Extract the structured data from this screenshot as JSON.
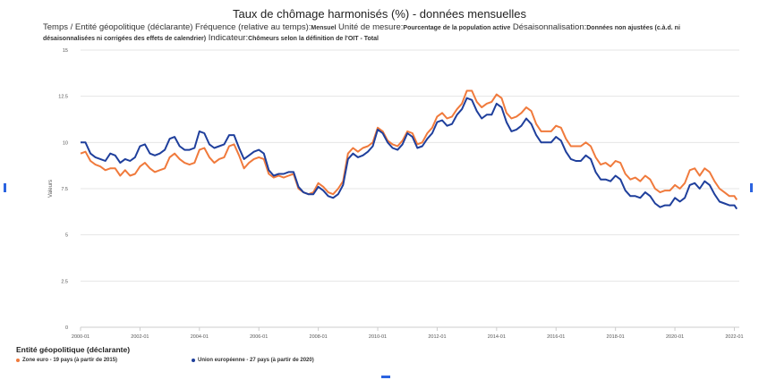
{
  "title": "Taux de chômage harmonisés (%) - données mensuelles",
  "subtitle": {
    "l1_k1": "Temps / Entité géopolitique (déclarante)  Fréquence (relative au temps):",
    "l1_v1": "Mensuel",
    "l1_k2": "  Unité de mesure:",
    "l1_v2": "Pourcentage de la population active",
    "l1_k3": "  Désaisonnalisation:",
    "l1_v3": "Données non ajustées (c.à.d. ni désaisonnalisées ni corrigées des effets de calendrier)",
    "l2_k1": "  Indicateur:",
    "l2_v1": "Chômeurs selon la définition de l'OIT - Total"
  },
  "legend_title": "Entité géopolitique (déclarante)",
  "colors": {
    "euro": "#f07a3c",
    "eu": "#1f3f9c",
    "grid": "#e6e6e6",
    "axis": "#cccccc",
    "edge": "#2b63e0"
  },
  "chart_data": {
    "type": "line",
    "ylabel": "Valeurs",
    "ylim": [
      0,
      15
    ],
    "yticks": [
      0,
      2.5,
      5,
      7.5,
      10,
      12.5,
      15
    ],
    "ytick_labels": [
      "0",
      "2.5",
      "5",
      "7.5",
      "10",
      "12.5",
      "15"
    ],
    "xlim": [
      "2000-01",
      "2022-03"
    ],
    "xticks": [
      "2000-01",
      "2002-01",
      "2004-01",
      "2006-01",
      "2008-01",
      "2010-01",
      "2012-01",
      "2014-01",
      "2016-01",
      "2018-01",
      "2020-01",
      "2022-01"
    ],
    "series": [
      {
        "name": "Zone euro - 19 pays (à partir de 2015)",
        "color": "#f07a3c",
        "points": [
          [
            "2000-01",
            9.4
          ],
          [
            "2000-03",
            9.5
          ],
          [
            "2000-05",
            9.0
          ],
          [
            "2000-07",
            8.8
          ],
          [
            "2000-09",
            8.7
          ],
          [
            "2000-11",
            8.5
          ],
          [
            "2001-01",
            8.6
          ],
          [
            "2001-03",
            8.6
          ],
          [
            "2001-05",
            8.2
          ],
          [
            "2001-07",
            8.5
          ],
          [
            "2001-09",
            8.2
          ],
          [
            "2001-11",
            8.3
          ],
          [
            "2002-01",
            8.7
          ],
          [
            "2002-03",
            8.9
          ],
          [
            "2002-05",
            8.6
          ],
          [
            "2002-07",
            8.4
          ],
          [
            "2002-09",
            8.5
          ],
          [
            "2002-11",
            8.6
          ],
          [
            "2003-01",
            9.2
          ],
          [
            "2003-03",
            9.4
          ],
          [
            "2003-05",
            9.1
          ],
          [
            "2003-07",
            8.9
          ],
          [
            "2003-09",
            8.8
          ],
          [
            "2003-11",
            8.9
          ],
          [
            "2004-01",
            9.6
          ],
          [
            "2004-03",
            9.7
          ],
          [
            "2004-05",
            9.2
          ],
          [
            "2004-07",
            8.9
          ],
          [
            "2004-09",
            9.1
          ],
          [
            "2004-11",
            9.2
          ],
          [
            "2005-01",
            9.8
          ],
          [
            "2005-03",
            9.9
          ],
          [
            "2005-05",
            9.3
          ],
          [
            "2005-07",
            8.6
          ],
          [
            "2005-09",
            8.9
          ],
          [
            "2005-11",
            9.1
          ],
          [
            "2006-01",
            9.2
          ],
          [
            "2006-03",
            9.1
          ],
          [
            "2006-05",
            8.3
          ],
          [
            "2006-07",
            8.1
          ],
          [
            "2006-09",
            8.2
          ],
          [
            "2006-11",
            8.1
          ],
          [
            "2007-01",
            8.2
          ],
          [
            "2007-03",
            8.3
          ],
          [
            "2007-05",
            7.5
          ],
          [
            "2007-07",
            7.3
          ],
          [
            "2007-09",
            7.2
          ],
          [
            "2007-11",
            7.3
          ],
          [
            "2008-01",
            7.8
          ],
          [
            "2008-03",
            7.6
          ],
          [
            "2008-05",
            7.3
          ],
          [
            "2008-07",
            7.2
          ],
          [
            "2008-09",
            7.5
          ],
          [
            "2008-11",
            7.9
          ],
          [
            "2009-01",
            9.4
          ],
          [
            "2009-03",
            9.7
          ],
          [
            "2009-05",
            9.5
          ],
          [
            "2009-07",
            9.7
          ],
          [
            "2009-09",
            9.8
          ],
          [
            "2009-11",
            10.0
          ],
          [
            "2010-01",
            10.8
          ],
          [
            "2010-03",
            10.6
          ],
          [
            "2010-05",
            10.1
          ],
          [
            "2010-07",
            9.9
          ],
          [
            "2010-09",
            9.8
          ],
          [
            "2010-11",
            10.1
          ],
          [
            "2011-01",
            10.6
          ],
          [
            "2011-03",
            10.5
          ],
          [
            "2011-05",
            9.9
          ],
          [
            "2011-07",
            10.0
          ],
          [
            "2011-09",
            10.5
          ],
          [
            "2011-11",
            10.8
          ],
          [
            "2012-01",
            11.4
          ],
          [
            "2012-03",
            11.6
          ],
          [
            "2012-05",
            11.3
          ],
          [
            "2012-07",
            11.4
          ],
          [
            "2012-09",
            11.8
          ],
          [
            "2012-11",
            12.1
          ],
          [
            "2013-01",
            12.8
          ],
          [
            "2013-03",
            12.8
          ],
          [
            "2013-05",
            12.2
          ],
          [
            "2013-07",
            11.9
          ],
          [
            "2013-09",
            12.1
          ],
          [
            "2013-11",
            12.2
          ],
          [
            "2014-01",
            12.6
          ],
          [
            "2014-03",
            12.4
          ],
          [
            "2014-05",
            11.6
          ],
          [
            "2014-07",
            11.3
          ],
          [
            "2014-09",
            11.4
          ],
          [
            "2014-11",
            11.6
          ],
          [
            "2015-01",
            11.9
          ],
          [
            "2015-03",
            11.7
          ],
          [
            "2015-05",
            11.0
          ],
          [
            "2015-07",
            10.6
          ],
          [
            "2015-09",
            10.6
          ],
          [
            "2015-11",
            10.6
          ],
          [
            "2016-01",
            10.9
          ],
          [
            "2016-03",
            10.8
          ],
          [
            "2016-05",
            10.2
          ],
          [
            "2016-07",
            9.8
          ],
          [
            "2016-09",
            9.8
          ],
          [
            "2016-11",
            9.8
          ],
          [
            "2017-01",
            10.0
          ],
          [
            "2017-03",
            9.8
          ],
          [
            "2017-05",
            9.2
          ],
          [
            "2017-07",
            8.8
          ],
          [
            "2017-09",
            8.9
          ],
          [
            "2017-11",
            8.7
          ],
          [
            "2018-01",
            9.0
          ],
          [
            "2018-03",
            8.9
          ],
          [
            "2018-05",
            8.3
          ],
          [
            "2018-07",
            8.0
          ],
          [
            "2018-09",
            8.1
          ],
          [
            "2018-11",
            7.9
          ],
          [
            "2019-01",
            8.2
          ],
          [
            "2019-03",
            8.0
          ],
          [
            "2019-05",
            7.5
          ],
          [
            "2019-07",
            7.3
          ],
          [
            "2019-09",
            7.4
          ],
          [
            "2019-11",
            7.4
          ],
          [
            "2020-01",
            7.7
          ],
          [
            "2020-03",
            7.5
          ],
          [
            "2020-05",
            7.8
          ],
          [
            "2020-07",
            8.5
          ],
          [
            "2020-09",
            8.6
          ],
          [
            "2020-11",
            8.2
          ],
          [
            "2021-01",
            8.6
          ],
          [
            "2021-03",
            8.4
          ],
          [
            "2021-05",
            7.9
          ],
          [
            "2021-07",
            7.5
          ],
          [
            "2021-09",
            7.3
          ],
          [
            "2021-11",
            7.1
          ],
          [
            "2022-01",
            7.1
          ],
          [
            "2022-02",
            6.9
          ]
        ]
      },
      {
        "name": "Union européenne - 27 pays (à partir de 2020)",
        "color": "#1f3f9c",
        "points": [
          [
            "2000-01",
            10.0
          ],
          [
            "2000-03",
            10.0
          ],
          [
            "2000-05",
            9.4
          ],
          [
            "2000-07",
            9.2
          ],
          [
            "2000-09",
            9.1
          ],
          [
            "2000-11",
            9.0
          ],
          [
            "2001-01",
            9.4
          ],
          [
            "2001-03",
            9.3
          ],
          [
            "2001-05",
            8.9
          ],
          [
            "2001-07",
            9.1
          ],
          [
            "2001-09",
            9.0
          ],
          [
            "2001-11",
            9.2
          ],
          [
            "2002-01",
            9.8
          ],
          [
            "2002-03",
            9.9
          ],
          [
            "2002-05",
            9.4
          ],
          [
            "2002-07",
            9.3
          ],
          [
            "2002-09",
            9.4
          ],
          [
            "2002-11",
            9.6
          ],
          [
            "2003-01",
            10.2
          ],
          [
            "2003-03",
            10.3
          ],
          [
            "2003-05",
            9.8
          ],
          [
            "2003-07",
            9.6
          ],
          [
            "2003-09",
            9.6
          ],
          [
            "2003-11",
            9.7
          ],
          [
            "2004-01",
            10.6
          ],
          [
            "2004-03",
            10.5
          ],
          [
            "2004-05",
            9.9
          ],
          [
            "2004-07",
            9.7
          ],
          [
            "2004-09",
            9.8
          ],
          [
            "2004-11",
            9.9
          ],
          [
            "2005-01",
            10.4
          ],
          [
            "2005-03",
            10.4
          ],
          [
            "2005-05",
            9.7
          ],
          [
            "2005-07",
            9.1
          ],
          [
            "2005-09",
            9.3
          ],
          [
            "2005-11",
            9.5
          ],
          [
            "2006-01",
            9.6
          ],
          [
            "2006-03",
            9.4
          ],
          [
            "2006-05",
            8.5
          ],
          [
            "2006-07",
            8.2
          ],
          [
            "2006-09",
            8.3
          ],
          [
            "2006-11",
            8.3
          ],
          [
            "2007-01",
            8.4
          ],
          [
            "2007-03",
            8.4
          ],
          [
            "2007-05",
            7.6
          ],
          [
            "2007-07",
            7.3
          ],
          [
            "2007-09",
            7.2
          ],
          [
            "2007-11",
            7.2
          ],
          [
            "2008-01",
            7.6
          ],
          [
            "2008-03",
            7.4
          ],
          [
            "2008-05",
            7.1
          ],
          [
            "2008-07",
            7.0
          ],
          [
            "2008-09",
            7.2
          ],
          [
            "2008-11",
            7.7
          ],
          [
            "2009-01",
            9.1
          ],
          [
            "2009-03",
            9.4
          ],
          [
            "2009-05",
            9.2
          ],
          [
            "2009-07",
            9.3
          ],
          [
            "2009-09",
            9.5
          ],
          [
            "2009-11",
            9.8
          ],
          [
            "2010-01",
            10.7
          ],
          [
            "2010-03",
            10.5
          ],
          [
            "2010-05",
            10.0
          ],
          [
            "2010-07",
            9.7
          ],
          [
            "2010-09",
            9.6
          ],
          [
            "2010-11",
            9.9
          ],
          [
            "2011-01",
            10.5
          ],
          [
            "2011-03",
            10.3
          ],
          [
            "2011-05",
            9.7
          ],
          [
            "2011-07",
            9.8
          ],
          [
            "2011-09",
            10.2
          ],
          [
            "2011-11",
            10.5
          ],
          [
            "2012-01",
            11.1
          ],
          [
            "2012-03",
            11.2
          ],
          [
            "2012-05",
            10.9
          ],
          [
            "2012-07",
            11.0
          ],
          [
            "2012-09",
            11.5
          ],
          [
            "2012-11",
            11.8
          ],
          [
            "2013-01",
            12.4
          ],
          [
            "2013-03",
            12.3
          ],
          [
            "2013-05",
            11.7
          ],
          [
            "2013-07",
            11.3
          ],
          [
            "2013-09",
            11.5
          ],
          [
            "2013-11",
            11.5
          ],
          [
            "2014-01",
            12.1
          ],
          [
            "2014-03",
            11.9
          ],
          [
            "2014-05",
            11.1
          ],
          [
            "2014-07",
            10.6
          ],
          [
            "2014-09",
            10.7
          ],
          [
            "2014-11",
            10.9
          ],
          [
            "2015-01",
            11.3
          ],
          [
            "2015-03",
            11.0
          ],
          [
            "2015-05",
            10.4
          ],
          [
            "2015-07",
            10.0
          ],
          [
            "2015-09",
            10.0
          ],
          [
            "2015-11",
            10.0
          ],
          [
            "2016-01",
            10.3
          ],
          [
            "2016-03",
            10.1
          ],
          [
            "2016-05",
            9.5
          ],
          [
            "2016-07",
            9.1
          ],
          [
            "2016-09",
            9.0
          ],
          [
            "2016-11",
            9.0
          ],
          [
            "2017-01",
            9.3
          ],
          [
            "2017-03",
            9.1
          ],
          [
            "2017-05",
            8.4
          ],
          [
            "2017-07",
            8.0
          ],
          [
            "2017-09",
            8.0
          ],
          [
            "2017-11",
            7.9
          ],
          [
            "2018-01",
            8.2
          ],
          [
            "2018-03",
            8.0
          ],
          [
            "2018-05",
            7.4
          ],
          [
            "2018-07",
            7.1
          ],
          [
            "2018-09",
            7.1
          ],
          [
            "2018-11",
            7.0
          ],
          [
            "2019-01",
            7.3
          ],
          [
            "2019-03",
            7.1
          ],
          [
            "2019-05",
            6.7
          ],
          [
            "2019-07",
            6.5
          ],
          [
            "2019-09",
            6.6
          ],
          [
            "2019-11",
            6.6
          ],
          [
            "2020-01",
            7.0
          ],
          [
            "2020-03",
            6.8
          ],
          [
            "2020-05",
            7.0
          ],
          [
            "2020-07",
            7.7
          ],
          [
            "2020-09",
            7.8
          ],
          [
            "2020-11",
            7.5
          ],
          [
            "2021-01",
            7.9
          ],
          [
            "2021-03",
            7.7
          ],
          [
            "2021-05",
            7.2
          ],
          [
            "2021-07",
            6.8
          ],
          [
            "2021-09",
            6.7
          ],
          [
            "2021-11",
            6.6
          ],
          [
            "2022-01",
            6.6
          ],
          [
            "2022-02",
            6.4
          ]
        ]
      }
    ],
    "grid": true,
    "legend_position": "bottom-left"
  }
}
